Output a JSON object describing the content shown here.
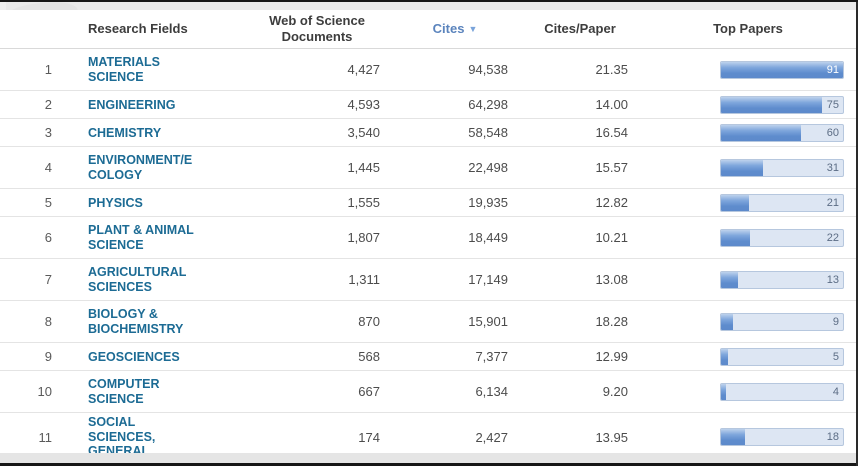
{
  "table": {
    "columns": {
      "rank": "",
      "research_fields": "Research Fields",
      "documents": "Web of Science\nDocuments",
      "cites": "Cites",
      "cites_per_paper": "Cites/Paper",
      "top_papers": "Top Papers"
    },
    "sort": {
      "column": "Cites",
      "direction": "desc",
      "indicator": "▼"
    },
    "top_papers_max": 91,
    "rows": [
      {
        "rank": "1",
        "field": "MATERIALS\nSCIENCE",
        "documents": "4,427",
        "cites": "94,538",
        "cites_per_paper": "21.35",
        "top_papers": 91
      },
      {
        "rank": "2",
        "field": "ENGINEERING",
        "documents": "4,593",
        "cites": "64,298",
        "cites_per_paper": "14.00",
        "top_papers": 75
      },
      {
        "rank": "3",
        "field": "CHEMISTRY",
        "documents": "3,540",
        "cites": "58,548",
        "cites_per_paper": "16.54",
        "top_papers": 60
      },
      {
        "rank": "4",
        "field": "ENVIRONMENT/E\nCOLOGY",
        "documents": "1,445",
        "cites": "22,498",
        "cites_per_paper": "15.57",
        "top_papers": 31
      },
      {
        "rank": "5",
        "field": "PHYSICS",
        "documents": "1,555",
        "cites": "19,935",
        "cites_per_paper": "12.82",
        "top_papers": 21
      },
      {
        "rank": "6",
        "field": "PLANT & ANIMAL\nSCIENCE",
        "documents": "1,807",
        "cites": "18,449",
        "cites_per_paper": "10.21",
        "top_papers": 22
      },
      {
        "rank": "7",
        "field": "AGRICULTURAL\nSCIENCES",
        "documents": "1,311",
        "cites": "17,149",
        "cites_per_paper": "13.08",
        "top_papers": 13
      },
      {
        "rank": "8",
        "field": "BIOLOGY &\nBIOCHEMISTRY",
        "documents": "870",
        "cites": "15,901",
        "cites_per_paper": "18.28",
        "top_papers": 9
      },
      {
        "rank": "9",
        "field": "GEOSCIENCES",
        "documents": "568",
        "cites": "7,377",
        "cites_per_paper": "12.99",
        "top_papers": 5
      },
      {
        "rank": "10",
        "field": "COMPUTER\nSCIENCE",
        "documents": "667",
        "cites": "6,134",
        "cites_per_paper": "9.20",
        "top_papers": 4
      },
      {
        "rank": "11",
        "field": "SOCIAL\nSCIENCES,\nGENERAL",
        "documents": "174",
        "cites": "2,427",
        "cites_per_paper": "13.95",
        "top_papers": 18
      }
    ]
  },
  "colors": {
    "field_link": "#1c6b94",
    "sorted_header": "#5b84bd",
    "bar_fill": "#5e8ccd",
    "bar_track": "#dde6f3",
    "bar_border": "#b6c7de"
  },
  "chart_data": {
    "type": "bar",
    "title": "Top Papers",
    "categories": [
      "MATERIALS SCIENCE",
      "ENGINEERING",
      "CHEMISTRY",
      "ENVIRONMENT/ECOLOGY",
      "PHYSICS",
      "PLANT & ANIMAL SCIENCE",
      "AGRICULTURAL SCIENCES",
      "BIOLOGY & BIOCHEMISTRY",
      "GEOSCIENCES",
      "COMPUTER SCIENCE",
      "SOCIAL SCIENCES, GENERAL"
    ],
    "values": [
      91,
      75,
      60,
      31,
      21,
      22,
      13,
      9,
      5,
      4,
      18
    ],
    "xlim": [
      0,
      91
    ]
  }
}
